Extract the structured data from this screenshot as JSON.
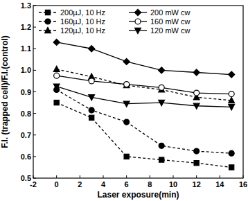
{
  "chart_data": {
    "type": "line",
    "x_label": "Laser exposure(min)",
    "y_label": "F.I. (trapped cell)/F.I.(control)",
    "x": [
      0,
      3,
      6,
      9,
      12,
      15
    ],
    "xlim": [
      -2,
      16
    ],
    "xticks": [
      -2,
      0,
      2,
      4,
      6,
      8,
      10,
      12,
      14,
      16
    ],
    "ylim": [
      0.5,
      1.3
    ],
    "yticks": [
      0.5,
      0.6,
      0.7,
      0.8,
      0.9,
      {
        "value": 1,
        "label": "1.0"
      },
      1.1,
      1.2,
      1.3
    ],
    "legend": "upper left",
    "grid": false,
    "series": [
      {
        "name": "200µJ, 10 Hz",
        "color": "#000000",
        "marker": "square",
        "line_style": "dashed",
        "values": [
          0.85,
          0.78,
          0.6,
          0.585,
          0.57,
          0.55
        ]
      },
      {
        "name": "160µJ, 10 Hz",
        "color": "#000000",
        "marker": "circle",
        "line_style": "dashed",
        "values": [
          0.91,
          0.815,
          0.76,
          0.65,
          0.625,
          0.615
        ]
      },
      {
        "name": "120µJ, 10 Hz",
        "color": "#000000",
        "marker": "triangle",
        "line_style": "dashed",
        "values": [
          1.005,
          0.97,
          0.93,
          0.91,
          0.875,
          0.86
        ]
      },
      {
        "name": "200 mW cw",
        "color": "#000000",
        "marker": "diamond",
        "line_style": "solid",
        "values": [
          1.13,
          1.1,
          1.04,
          1.0,
          0.99,
          0.98
        ]
      },
      {
        "name": "160 mW cw",
        "color": "#000000",
        "marker": "circle-open",
        "line_style": "solid",
        "values": [
          0.975,
          0.95,
          0.935,
          0.92,
          0.895,
          0.89
        ]
      },
      {
        "name": "120 mW cw",
        "color": "#000000",
        "marker": "triangle-down",
        "line_style": "solid",
        "values": [
          0.925,
          0.875,
          0.845,
          0.85,
          0.835,
          0.83
        ]
      }
    ]
  }
}
